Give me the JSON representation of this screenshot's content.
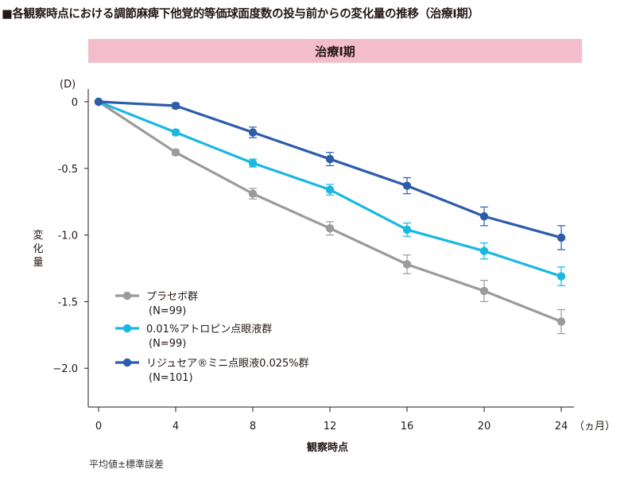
{
  "title": "■各観察時点における調節麻痺下他覚的等価球面度数の投与前からの変化量の推移（治療Ⅰ期）",
  "banner": "治療Ⅰ期",
  "footnote": "平均値±標準誤差",
  "chart_data": {
    "type": "line",
    "x": [
      0,
      4,
      8,
      12,
      16,
      20,
      24
    ],
    "xticks": [
      "0",
      "4",
      "8",
      "12",
      "16",
      "20",
      "24"
    ],
    "xunit": "（ヵ月）",
    "xlabel": "観察時点",
    "ylabel": "変化量",
    "yunit": "(D)",
    "ylim": [
      -2.3,
      0.1
    ],
    "yticks": [
      0,
      -0.5,
      -1.0,
      -1.5,
      -2.0
    ],
    "yticklabels": [
      "0",
      "-0.5",
      "-1.0",
      "-1.5",
      "−2.0"
    ],
    "series": [
      {
        "name": "プラセボ群",
        "n": "(N=99)",
        "color": "#9b9b9b",
        "values": [
          0,
          -0.38,
          -0.69,
          -0.95,
          -1.22,
          -1.42,
          -1.65
        ],
        "errors": [
          0,
          0.02,
          0.04,
          0.05,
          0.07,
          0.08,
          0.09
        ]
      },
      {
        "name": "0.01%アトロピン点眼液群",
        "n": "(N=99)",
        "color": "#19b8e0",
        "values": [
          0,
          -0.23,
          -0.46,
          -0.66,
          -0.96,
          -1.12,
          -1.31
        ],
        "errors": [
          0,
          0.02,
          0.03,
          0.04,
          0.05,
          0.06,
          0.07
        ]
      },
      {
        "name": "リジュセア®ミニ点眼液0.025%群",
        "n": "(N=101)",
        "color": "#2d5cab",
        "values": [
          0,
          -0.03,
          -0.23,
          -0.43,
          -0.63,
          -0.86,
          -1.02
        ],
        "errors": [
          0,
          0.02,
          0.04,
          0.05,
          0.06,
          0.07,
          0.09
        ]
      }
    ]
  }
}
